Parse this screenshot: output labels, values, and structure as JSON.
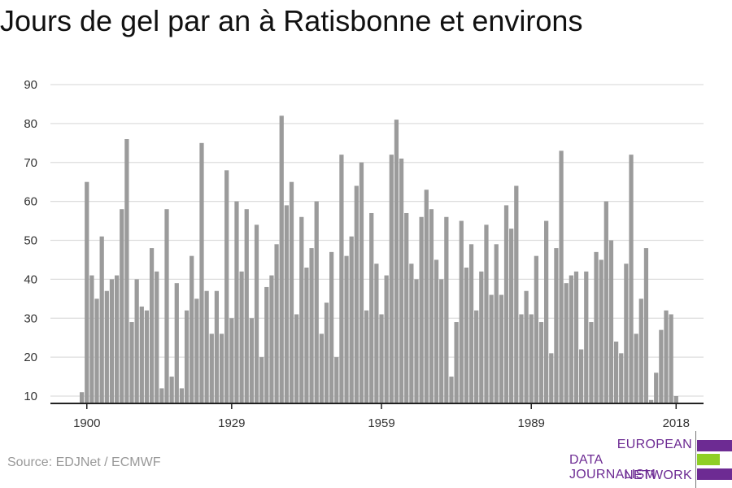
{
  "title": "Jours de gel par an à Ratisbonne et environs",
  "source": "Source: EDJNet / ECMWF",
  "logo": {
    "line1": "EUROPEAN",
    "line2": "DATA JOURNALISM",
    "line3": "NETWORK",
    "color_purple": "#6d2b93",
    "color_green": "#8fcf26"
  },
  "colors": {
    "bar": "#9b9b9b",
    "grid": "#dddddd",
    "axis": "#222222",
    "tick_text": "#333333"
  },
  "chart_data": {
    "type": "bar",
    "title": "Jours de gel par an à Ratisbonne et environs",
    "xlabel": "",
    "ylabel": "",
    "x_ticks": [
      1900,
      1929,
      1959,
      1989,
      2018
    ],
    "y_ticks": [
      10,
      20,
      30,
      40,
      50,
      60,
      70,
      80,
      90
    ],
    "ylim": [
      8,
      90
    ],
    "grid": true,
    "categories": [
      1899,
      1900,
      1901,
      1902,
      1903,
      1904,
      1905,
      1906,
      1907,
      1908,
      1909,
      1910,
      1911,
      1912,
      1913,
      1914,
      1915,
      1916,
      1917,
      1918,
      1919,
      1920,
      1921,
      1922,
      1923,
      1924,
      1925,
      1926,
      1927,
      1928,
      1929,
      1930,
      1931,
      1932,
      1933,
      1934,
      1935,
      1936,
      1937,
      1938,
      1939,
      1940,
      1941,
      1942,
      1943,
      1944,
      1945,
      1946,
      1947,
      1948,
      1949,
      1950,
      1951,
      1952,
      1953,
      1954,
      1955,
      1956,
      1957,
      1958,
      1959,
      1960,
      1961,
      1962,
      1963,
      1964,
      1965,
      1966,
      1967,
      1968,
      1969,
      1970,
      1971,
      1972,
      1973,
      1974,
      1975,
      1976,
      1977,
      1978,
      1979,
      1980,
      1981,
      1982,
      1983,
      1984,
      1985,
      1986,
      1987,
      1988,
      1989,
      1990,
      1991,
      1992,
      1993,
      1994,
      1995,
      1996,
      1997,
      1998,
      1999,
      2000,
      2001,
      2002,
      2003,
      2004,
      2005,
      2006,
      2007,
      2008,
      2009,
      2010,
      2011,
      2012,
      2013,
      2014,
      2015,
      2016,
      2017,
      2018
    ],
    "values": [
      11,
      65,
      41,
      35,
      51,
      37,
      40,
      41,
      58,
      76,
      29,
      40,
      33,
      32,
      48,
      42,
      12,
      58,
      15,
      39,
      12,
      32,
      46,
      35,
      75,
      37,
      26,
      37,
      26,
      68,
      30,
      60,
      42,
      58,
      30,
      54,
      20,
      38,
      41,
      49,
      82,
      59,
      65,
      31,
      56,
      43,
      48,
      60,
      26,
      34,
      47,
      20,
      72,
      46,
      51,
      64,
      70,
      32,
      57,
      44,
      31,
      41,
      72,
      81,
      71,
      57,
      44,
      40,
      56,
      63,
      58,
      45,
      40,
      56,
      15,
      29,
      55,
      43,
      49,
      32,
      42,
      54,
      36,
      49,
      36,
      59,
      53,
      64,
      31,
      37,
      31,
      46,
      29,
      55,
      21,
      48,
      73,
      39,
      41,
      42,
      22,
      42,
      29,
      47,
      45,
      60,
      50,
      24,
      21,
      44,
      72,
      26,
      35,
      48,
      9,
      16,
      27,
      32,
      31,
      10
    ]
  }
}
